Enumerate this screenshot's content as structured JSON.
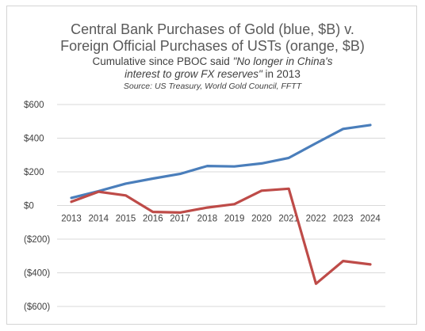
{
  "chart_data": {
    "type": "line",
    "title_line1": "Central Bank Purchases of Gold (blue, $B) v.",
    "title_line2": "Foreign Official Purchases of USTs (orange, $B)",
    "subtitle_line1_pre": "Cumulative since PBOC said ",
    "subtitle_line1_quote": "\"No longer in China's",
    "subtitle_line2_quote": "interest to grow FX reserves\"",
    "subtitle_line2_post": " in 2013",
    "source": "Source: US Treasury, World Gold Council, FFTT",
    "x": [
      "2013",
      "2014",
      "2015",
      "2016",
      "2017",
      "2018",
      "2019",
      "2020",
      "2021",
      "2022",
      "2023",
      "2024"
    ],
    "series": [
      {
        "values": [
          45,
          85,
          130,
          160,
          188,
          235,
          232,
          250,
          283,
          370,
          455,
          478
        ],
        "color": "#4a7ebb"
      },
      {
        "values": [
          22,
          82,
          60,
          -38,
          -42,
          -12,
          8,
          88,
          100,
          -465,
          -330,
          -350
        ],
        "color": "#be4b48"
      }
    ],
    "ylim": [
      -600,
      600
    ],
    "yticks": [
      600,
      400,
      200,
      0,
      -200,
      -400,
      -600
    ],
    "ytick_labels": [
      "$600",
      "$400",
      "$200",
      "$0",
      "($200)",
      "($400)",
      "($600)"
    ],
    "grid": true,
    "legend": "none"
  }
}
